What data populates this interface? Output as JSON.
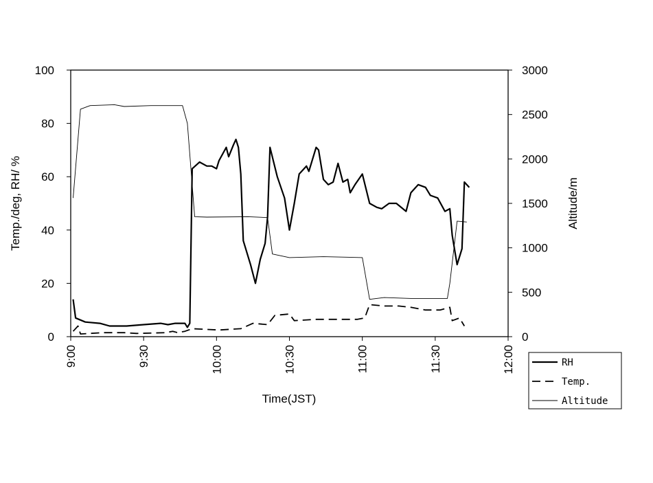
{
  "chart_data": {
    "type": "line",
    "xlabel": "Time(JST)",
    "ylabel": "Temp./deg, RH/ %",
    "y2label": "Altitude/m",
    "xlim": [
      0,
      180
    ],
    "xticks": [
      {
        "value": 0,
        "label": "9:00"
      },
      {
        "value": 30,
        "label": "9:30"
      },
      {
        "value": 60,
        "label": "10:00"
      },
      {
        "value": 90,
        "label": "10:30"
      },
      {
        "value": 120,
        "label": "11:00"
      },
      {
        "value": 150,
        "label": "11:30"
      },
      {
        "value": 180,
        "label": "12:00"
      }
    ],
    "ylim": [
      0,
      100
    ],
    "yticks": [
      0,
      20,
      40,
      60,
      80,
      100
    ],
    "y2lim": [
      0,
      3000
    ],
    "y2ticks": [
      0,
      500,
      1000,
      1500,
      2000,
      2500,
      3000
    ],
    "grid": false,
    "legend": "lower right",
    "series": [
      {
        "name": "RH",
        "color": "#000000",
        "style": "solid",
        "width": 2.2,
        "x": [
          1,
          2,
          6,
          12,
          16,
          23,
          30,
          37,
          40,
          43,
          47,
          48,
          49,
          50,
          53,
          56,
          58,
          60,
          61,
          64,
          65,
          67,
          68,
          69,
          70,
          71,
          74,
          76,
          78,
          80,
          81,
          82,
          85,
          88,
          90,
          92,
          94,
          97,
          98,
          101,
          102,
          104,
          106,
          108,
          110,
          112,
          114,
          115,
          117,
          120,
          123,
          126,
          128,
          131,
          134,
          138,
          140,
          143,
          146,
          148,
          151,
          154,
          156,
          157,
          159,
          161,
          162,
          164
        ],
        "values": [
          14,
          7,
          5.5,
          5,
          4,
          4,
          4.5,
          5,
          4.5,
          5,
          5,
          3.5,
          5,
          63,
          65.5,
          64,
          64,
          63,
          66,
          71,
          67.5,
          72,
          74,
          71,
          61,
          36,
          27,
          20,
          29,
          35,
          45,
          71,
          60,
          52,
          40,
          50,
          61,
          64,
          62,
          71,
          70,
          59,
          57,
          58,
          65,
          58,
          59,
          54,
          57,
          61,
          50,
          48.5,
          48,
          50,
          50,
          47,
          54,
          57,
          56,
          53,
          52,
          47,
          48,
          38,
          27,
          33,
          58,
          56
        ]
      },
      {
        "name": "Temp.",
        "color": "#000000",
        "style": "dashed",
        "width": 1.8,
        "x": [
          1,
          3,
          4,
          13,
          22,
          27,
          39,
          42,
          44,
          47,
          50,
          61,
          70,
          75,
          81,
          84,
          90,
          92,
          101,
          112,
          118,
          121,
          123,
          129,
          135,
          140,
          146,
          152,
          156,
          157,
          160,
          162
        ],
        "values": [
          2,
          4,
          1,
          1.5,
          1.5,
          1.2,
          1.5,
          2,
          1.5,
          2,
          3,
          2.5,
          3,
          5,
          4.5,
          8,
          8.5,
          6,
          6.5,
          6.5,
          6.5,
          7,
          12,
          11.5,
          11.5,
          11,
          10,
          10,
          11,
          6,
          7,
          4
        ]
      },
      {
        "name": "Altitude",
        "color": "#000000",
        "style": "solid",
        "width": 0.9,
        "axis": "y2",
        "x": [
          1,
          4,
          8,
          18,
          22,
          33,
          46,
          48,
          51,
          56,
          73,
          81,
          83,
          90,
          104,
          120,
          123,
          129,
          140,
          155,
          156,
          159,
          163
        ],
        "values": [
          1560,
          2560,
          2600,
          2610,
          2590,
          2600,
          2600,
          2400,
          1350,
          1345,
          1350,
          1340,
          930,
          890,
          900,
          890,
          420,
          440,
          430,
          430,
          600,
          1300,
          1290
        ]
      }
    ]
  }
}
